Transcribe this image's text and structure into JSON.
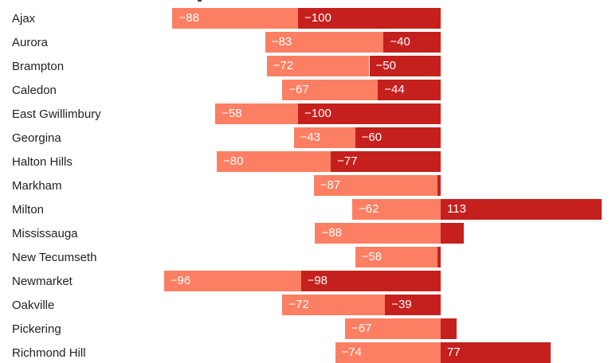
{
  "chart_data": {
    "type": "bar",
    "orientation": "horizontal",
    "stacked": true,
    "grid": false,
    "legend": "none",
    "axis": {
      "zero_value": 0,
      "xlim": [
        -195,
        120
      ],
      "tick_labels_visible": false
    },
    "colors": {
      "series_light": "#FC7F63",
      "series_dark": "#C5201E",
      "value_label_text": "#FFFFFF",
      "category_text": "#1F1F1F",
      "background": "#FFFFFF"
    },
    "rows": [
      {
        "category": "Ajax",
        "light": -88,
        "dark": -100,
        "light_label": "−88",
        "dark_label": "−100"
      },
      {
        "category": "Aurora",
        "light": -83,
        "dark": -40,
        "light_label": "−83",
        "dark_label": "−40"
      },
      {
        "category": "Brampton",
        "light": -72,
        "dark": -50,
        "light_label": "−72",
        "dark_label": "−50"
      },
      {
        "category": "Caledon",
        "light": -67,
        "dark": -44,
        "light_label": "−67",
        "dark_label": "−44"
      },
      {
        "category": "East Gwillimbury",
        "light": -58,
        "dark": -100,
        "light_label": "−58",
        "dark_label": "−100"
      },
      {
        "category": "Georgina",
        "light": -43,
        "dark": -60,
        "light_label": "−43",
        "dark_label": "−60"
      },
      {
        "category": "Halton Hills",
        "light": -80,
        "dark": -77,
        "light_label": "−80",
        "dark_label": "−77"
      },
      {
        "category": "Markham",
        "light": -87,
        "dark": -2,
        "light_label": "−87",
        "dark_label": ""
      },
      {
        "category": "Milton",
        "light": -62,
        "dark": 113,
        "light_label": "−62",
        "dark_label": "113"
      },
      {
        "category": "Mississauga",
        "light": -88,
        "dark": 16,
        "light_label": "−88",
        "dark_label": ""
      },
      {
        "category": "New Tecumseth",
        "light": -58,
        "dark": -2,
        "light_label": "−58",
        "dark_label": ""
      },
      {
        "category": "Newmarket",
        "light": -96,
        "dark": -98,
        "light_label": "−96",
        "dark_label": "−98"
      },
      {
        "category": "Oakville",
        "light": -72,
        "dark": -39,
        "light_label": "−72",
        "dark_label": "−39"
      },
      {
        "category": "Pickering",
        "light": -67,
        "dark": 11,
        "light_label": "−67",
        "dark_label": ""
      },
      {
        "category": "Richmond Hill",
        "light": -74,
        "dark": 77,
        "light_label": "−74",
        "dark_label": "77"
      }
    ]
  }
}
